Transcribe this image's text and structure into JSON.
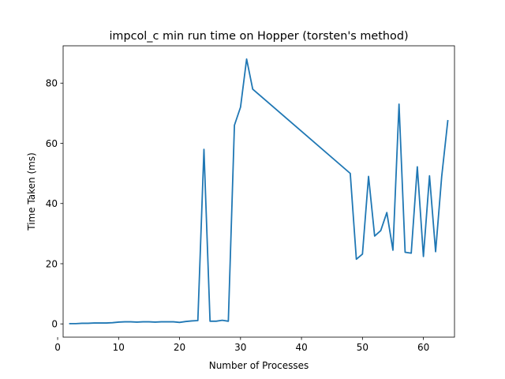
{
  "chart_data": {
    "type": "line",
    "title": "impcol_c min run time on Hopper (torsten's method)",
    "xlabel": "Number of Processes",
    "ylabel": "Time Taken (ms)",
    "xlim": [
      0.9,
      65.1
    ],
    "ylim": [
      -4.4,
      92.4
    ],
    "xticks": [
      0,
      10,
      20,
      30,
      40,
      50,
      60
    ],
    "yticks": [
      0,
      20,
      40,
      60,
      80
    ],
    "grid": false,
    "legend": "none",
    "series": [
      {
        "color": "#1f77b4",
        "x": [
          2,
          3,
          4,
          5,
          6,
          7,
          8,
          9,
          10,
          11,
          12,
          13,
          14,
          15,
          16,
          17,
          18,
          19,
          20,
          21,
          22,
          23,
          24,
          25,
          26,
          27,
          28,
          29,
          30,
          31,
          32,
          48,
          49,
          50,
          51,
          52,
          53,
          54,
          55,
          56,
          57,
          58,
          59,
          60,
          61,
          62,
          63,
          64
        ],
        "y": [
          0.1,
          0.1,
          0.2,
          0.2,
          0.3,
          0.3,
          0.3,
          0.4,
          0.6,
          0.7,
          0.7,
          0.6,
          0.7,
          0.7,
          0.6,
          0.7,
          0.7,
          0.7,
          0.5,
          0.8,
          1.0,
          1.1,
          58.0,
          0.9,
          0.9,
          1.2,
          0.9,
          66.0,
          72.0,
          88.0,
          78.0,
          50.0,
          21.5,
          23.2,
          49.0,
          29.2,
          31.0,
          37.0,
          24.5,
          73.0,
          23.8,
          23.5,
          52.2,
          22.4,
          49.2,
          24.0,
          49.0,
          67.5
        ]
      }
    ]
  }
}
